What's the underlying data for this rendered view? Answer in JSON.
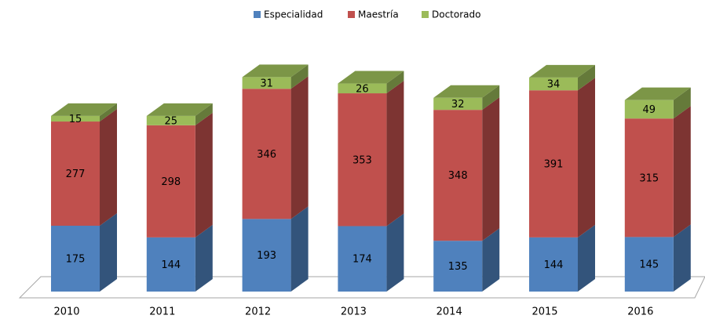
{
  "chart_data": {
    "type": "bar",
    "stacked": true,
    "three_d": true,
    "categories": [
      "2010",
      "2011",
      "2012",
      "2013",
      "2014",
      "2015",
      "2016"
    ],
    "series": [
      {
        "name": "Especialidad",
        "color": "#4f81bd",
        "values": [
          175,
          144,
          193,
          174,
          135,
          144,
          145
        ]
      },
      {
        "name": "Maestría",
        "color": "#c0504d",
        "values": [
          277,
          298,
          346,
          353,
          348,
          391,
          315
        ]
      },
      {
        "name": "Doctorado",
        "color": "#9bbb59",
        "values": [
          15,
          25,
          31,
          26,
          32,
          34,
          49
        ]
      }
    ],
    "legend": "top"
  }
}
